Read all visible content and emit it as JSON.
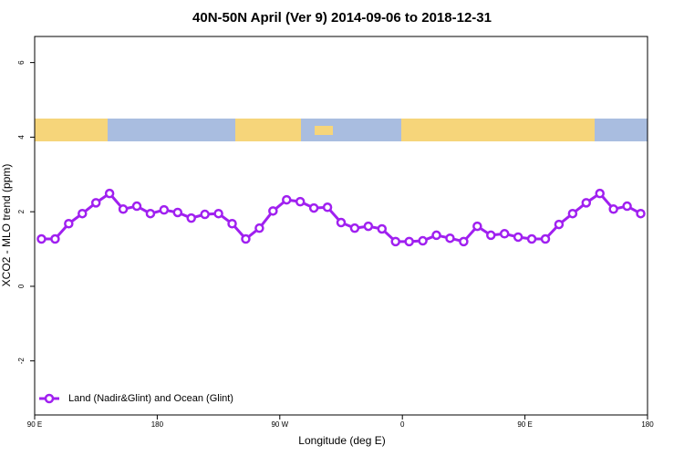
{
  "chart_data": {
    "type": "line",
    "title": "40N-50N April (Ver 9)   2014-09-06 to 2018-12-31",
    "x_label": "Longitude (deg E)",
    "y_label": "XCO2 - MLO trend (ppm)",
    "xlim": [
      90,
      540
    ],
    "ylim": [
      -3.45,
      6.7
    ],
    "xticks": [
      {
        "value": 90,
        "label": "90 E"
      },
      180,
      {
        "value": 270,
        "label": "90 W"
      },
      {
        "value": 360,
        "label": "0"
      },
      {
        "value": 450,
        "label": "90 E"
      },
      {
        "value": 540,
        "label": "180"
      }
    ],
    "yticks": [
      -2,
      0,
      2,
      4,
      6
    ],
    "legend": "bottom-left",
    "series": [
      {
        "name": "Land (Nadir&Glint) and Ocean (Glint)",
        "color": "#a020f0",
        "x": [
          95,
          105,
          115,
          125,
          135,
          145,
          155,
          165,
          175,
          185,
          195,
          205,
          215,
          225,
          235,
          245,
          255,
          265,
          275,
          285,
          295,
          305,
          315,
          325,
          335,
          345,
          355,
          365,
          375,
          385,
          395,
          405,
          415,
          425,
          435,
          445,
          455,
          465,
          475,
          485,
          495,
          505,
          515,
          525,
          535
        ],
        "values": [
          1.27,
          1.27,
          1.68,
          1.95,
          2.24,
          2.49,
          2.07,
          2.15,
          1.95,
          2.05,
          1.98,
          1.83,
          1.93,
          1.95,
          1.68,
          1.27,
          1.56,
          2.02,
          2.32,
          2.27,
          2.1,
          2.12,
          1.71,
          1.56,
          1.61,
          1.54,
          1.2,
          1.2,
          1.22,
          1.37,
          1.29,
          1.2,
          1.61,
          1.37,
          1.41,
          1.32,
          1.27,
          1.27,
          1.66,
          1.95,
          2.24,
          2.49,
          2.07,
          2.15,
          1.95
        ]
      }
    ]
  }
}
